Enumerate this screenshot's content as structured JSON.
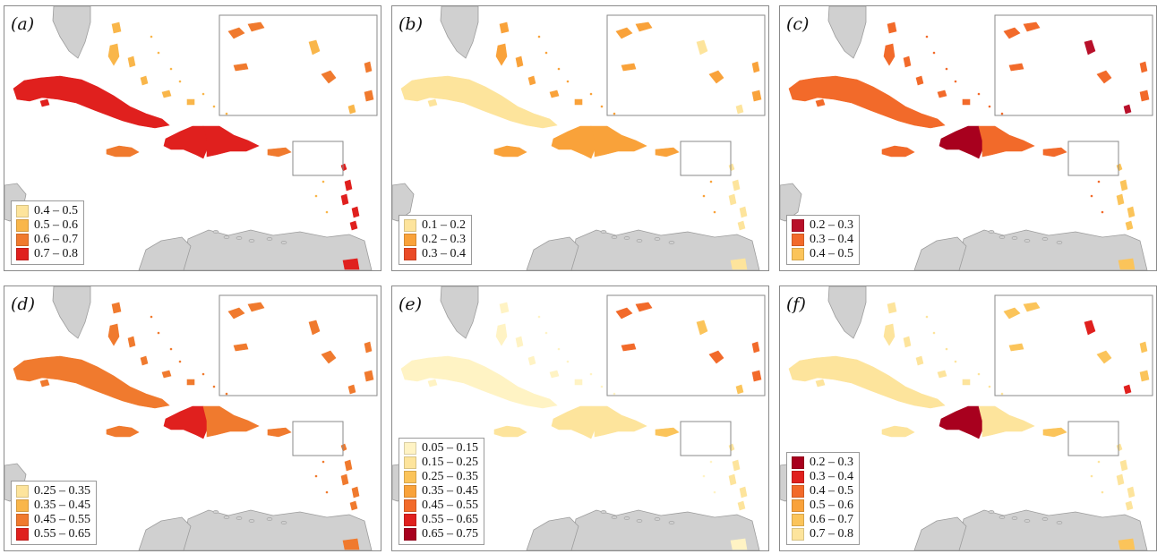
{
  "panels": [
    {
      "id": "a",
      "label": "(a)",
      "legend": [
        {
          "text": "0.4 – 0.5",
          "color": "#fde49c"
        },
        {
          "text": "0.5 – 0.6",
          "color": "#f9b64a"
        },
        {
          "text": "0.6 – 0.7",
          "color": "#f07a2e"
        },
        {
          "text": "0.7 – 0.8",
          "color": "#e0201e"
        }
      ],
      "colors": {
        "cuba": "#e0201e",
        "bahamas": "#f9b64a",
        "jamaica": "#f07a2e",
        "haiti": "#e0201e",
        "dr": "#e0201e",
        "pr": "#f07a2e",
        "antilles": "#e0201e",
        "trinidad": "#e0201e",
        "inset": "#f07a2e",
        "inset_alt": "#f9b64a"
      }
    },
    {
      "id": "b",
      "label": "(b)",
      "legend": [
        {
          "text": "0.1 – 0.2",
          "color": "#fde49c"
        },
        {
          "text": "0.2 – 0.3",
          "color": "#f9a23a"
        },
        {
          "text": "0.3 – 0.4",
          "color": "#ea4a26"
        }
      ],
      "colors": {
        "cuba": "#fde49c",
        "bahamas": "#f9a23a",
        "jamaica": "#f9a23a",
        "haiti": "#f9a23a",
        "dr": "#f9a23a",
        "pr": "#f9a23a",
        "antilles": "#fde49c",
        "trinidad": "#fde49c",
        "inset": "#f9a23a",
        "inset_alt": "#fde49c"
      }
    },
    {
      "id": "c",
      "label": "(c)",
      "legend": [
        {
          "text": "0.2 – 0.3",
          "color": "#b8102a"
        },
        {
          "text": "0.3 – 0.4",
          "color": "#f26a2a"
        },
        {
          "text": "0.4 – 0.5",
          "color": "#fbc45a"
        }
      ],
      "colors": {
        "cuba": "#f26a2a",
        "bahamas": "#f26a2a",
        "jamaica": "#f26a2a",
        "haiti": "#a8001e",
        "dr": "#f26a2a",
        "pr": "#f26a2a",
        "antilles": "#fbc45a",
        "trinidad": "#fbc45a",
        "inset": "#f26a2a",
        "inset_alt": "#b8102a"
      }
    },
    {
      "id": "d",
      "label": "(d)",
      "legend": [
        {
          "text": "0.25 – 0.35",
          "color": "#fde49c"
        },
        {
          "text": "0.35 – 0.45",
          "color": "#f9b64a"
        },
        {
          "text": "0.45 – 0.55",
          "color": "#f07a2e"
        },
        {
          "text": "0.55 – 0.65",
          "color": "#e0201e"
        }
      ],
      "colors": {
        "cuba": "#f07a2e",
        "bahamas": "#f07a2e",
        "jamaica": "#f07a2e",
        "haiti": "#e0201e",
        "dr": "#f07a2e",
        "pr": "#f07a2e",
        "antilles": "#f07a2e",
        "trinidad": "#f07a2e",
        "inset": "#f07a2e",
        "inset_alt": "#f07a2e"
      }
    },
    {
      "id": "e",
      "label": "(e)",
      "legend": [
        {
          "text": "0.05 – 0.15",
          "color": "#fff3c4"
        },
        {
          "text": "0.15 – 0.25",
          "color": "#fde49c"
        },
        {
          "text": "0.25 – 0.35",
          "color": "#fbc45a"
        },
        {
          "text": "0.35 – 0.45",
          "color": "#f9a23a"
        },
        {
          "text": "0.45 – 0.55",
          "color": "#f26a2a"
        },
        {
          "text": "0.55 – 0.65",
          "color": "#e0201e"
        },
        {
          "text": "0.65 – 0.75",
          "color": "#a8001e"
        }
      ],
      "colors": {
        "cuba": "#fff3c4",
        "bahamas": "#fff3c4",
        "jamaica": "#fde49c",
        "haiti": "#fde49c",
        "dr": "#fde49c",
        "pr": "#fbc45a",
        "antilles": "#fde49c",
        "trinidad": "#fff3c4",
        "inset": "#f26a2a",
        "inset_alt": "#fbc45a"
      }
    },
    {
      "id": "f",
      "label": "(f)",
      "legend": [
        {
          "text": "0.2 – 0.3",
          "color": "#a8001e"
        },
        {
          "text": "0.3 – 0.4",
          "color": "#e0201e"
        },
        {
          "text": "0.4 – 0.5",
          "color": "#f26a2a"
        },
        {
          "text": "0.5 – 0.6",
          "color": "#f9a23a"
        },
        {
          "text": "0.6 – 0.7",
          "color": "#fbc45a"
        },
        {
          "text": "0.7 – 0.8",
          "color": "#fde49c"
        }
      ],
      "colors": {
        "cuba": "#fde49c",
        "bahamas": "#fde49c",
        "jamaica": "#fde49c",
        "haiti": "#a8001e",
        "dr": "#fde49c",
        "pr": "#fbc45a",
        "antilles": "#fde49c",
        "trinidad": "#fbc45a",
        "inset": "#fbc45a",
        "inset_alt": "#e0201e"
      }
    }
  ],
  "land_color": "#d0d0d0",
  "land_stroke": "#9c9c9c",
  "frame_color": "#8a8a8a"
}
